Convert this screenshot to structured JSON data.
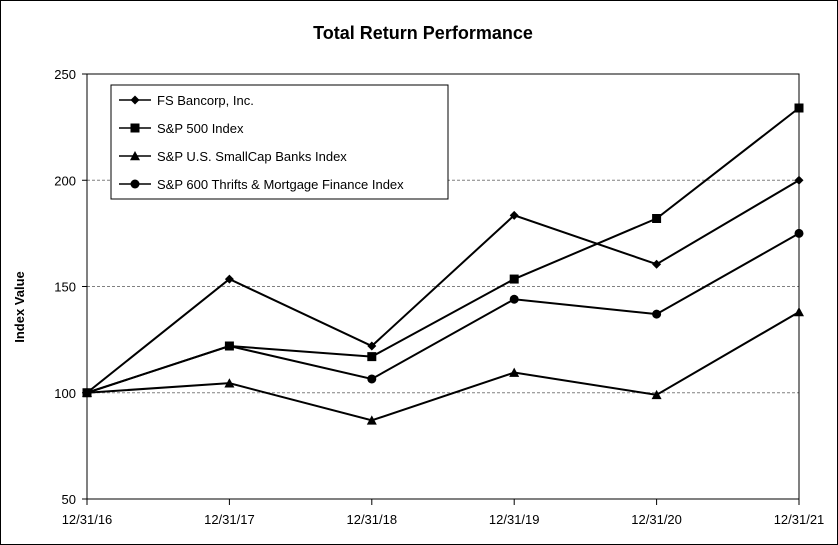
{
  "chart_data": {
    "type": "line",
    "title": "Total Return Performance",
    "xlabel": "",
    "ylabel": "Index Value",
    "categories": [
      "12/31/16",
      "12/31/17",
      "12/31/18",
      "12/31/19",
      "12/31/20",
      "12/31/21"
    ],
    "ylim": [
      50,
      250
    ],
    "yticks": [
      50,
      100,
      150,
      200,
      250
    ],
    "grid": "horizontal dashed",
    "legend_position": "top-left",
    "series": [
      {
        "name": "FS Bancorp, Inc.",
        "marker": "diamond",
        "values": [
          100,
          153.5,
          122,
          183.5,
          160.5,
          200
        ]
      },
      {
        "name": "S&P 500 Index",
        "marker": "square",
        "values": [
          100,
          122,
          117,
          153.5,
          182,
          234
        ]
      },
      {
        "name": "S&P U.S. SmallCap Banks Index",
        "marker": "triangle",
        "values": [
          100,
          104.5,
          87,
          109.5,
          99,
          138
        ]
      },
      {
        "name": "S&P 600 Thrifts & Mortgage Finance Index",
        "marker": "circle",
        "values": [
          100,
          122,
          106.5,
          144,
          137,
          175
        ]
      }
    ],
    "colors": {
      "line": "#000000",
      "grid": "#808080",
      "background": "#ffffff"
    }
  }
}
